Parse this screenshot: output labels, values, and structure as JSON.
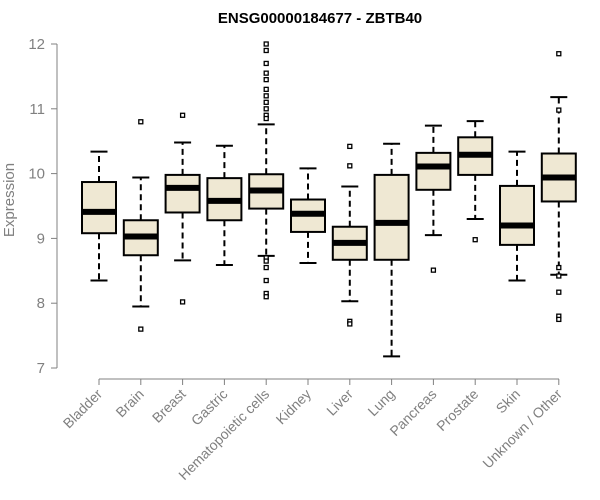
{
  "chart_data": {
    "type": "box",
    "title": "ENSG00000184677 - ZBTB40",
    "xlabel": "",
    "ylabel": "Expression",
    "ylim": [
      7,
      12
    ],
    "yticks": [
      7,
      8,
      9,
      10,
      11,
      12
    ],
    "colors": {
      "box_fill": "#efe8d3",
      "stroke": "#000000",
      "axis": "#808080",
      "tick_label": "#808080"
    },
    "categories": [
      "Bladder",
      "Brain",
      "Breast",
      "Gastric",
      "Hematopoietic cells",
      "Kidney",
      "Liver",
      "Lung",
      "Pancreas",
      "Prostate",
      "Skin",
      "Unknown / Other"
    ],
    "boxes": [
      {
        "category": "Bladder",
        "whisker_low": 8.35,
        "q1": 9.08,
        "median": 9.41,
        "q3": 9.87,
        "whisker_high": 10.34,
        "outliers": []
      },
      {
        "category": "Brain",
        "whisker_low": 7.95,
        "q1": 8.74,
        "median": 9.03,
        "q3": 9.28,
        "whisker_high": 9.94,
        "outliers": [
          10.8,
          7.6
        ]
      },
      {
        "category": "Breast",
        "whisker_low": 8.66,
        "q1": 9.4,
        "median": 9.78,
        "q3": 9.98,
        "whisker_high": 10.48,
        "outliers": [
          10.9,
          8.02
        ]
      },
      {
        "category": "Gastric",
        "whisker_low": 8.59,
        "q1": 9.28,
        "median": 9.58,
        "q3": 9.93,
        "whisker_high": 10.43,
        "outliers": []
      },
      {
        "category": "Hematopoietic cells",
        "whisker_low": 8.73,
        "q1": 9.46,
        "median": 9.74,
        "q3": 9.99,
        "whisker_high": 10.76,
        "outliers": [
          12.0,
          11.9,
          11.7,
          11.55,
          11.45,
          11.3,
          11.2,
          11.1,
          11.0,
          10.9,
          10.85,
          8.7,
          8.65,
          8.55,
          8.35,
          8.15,
          8.1
        ]
      },
      {
        "category": "Kidney",
        "whisker_low": 8.62,
        "q1": 9.1,
        "median": 9.38,
        "q3": 9.6,
        "whisker_high": 10.08,
        "outliers": []
      },
      {
        "category": "Liver",
        "whisker_low": 8.03,
        "q1": 8.67,
        "median": 8.93,
        "q3": 9.18,
        "whisker_high": 9.8,
        "outliers": [
          10.42,
          10.12,
          7.72,
          7.68
        ]
      },
      {
        "category": "Lung",
        "whisker_low": 7.18,
        "q1": 8.67,
        "median": 9.24,
        "q3": 9.98,
        "whisker_high": 10.46,
        "outliers": []
      },
      {
        "category": "Pancreas",
        "whisker_low": 9.05,
        "q1": 9.75,
        "median": 10.11,
        "q3": 10.32,
        "whisker_high": 10.74,
        "outliers": [
          8.51
        ]
      },
      {
        "category": "Prostate",
        "whisker_low": 9.3,
        "q1": 9.98,
        "median": 10.29,
        "q3": 10.56,
        "whisker_high": 10.81,
        "outliers": [
          8.98
        ]
      },
      {
        "category": "Skin",
        "whisker_low": 8.35,
        "q1": 8.9,
        "median": 9.2,
        "q3": 9.81,
        "whisker_high": 10.34,
        "outliers": []
      },
      {
        "category": "Unknown / Other",
        "whisker_low": 8.44,
        "q1": 9.57,
        "median": 9.94,
        "q3": 10.31,
        "whisker_high": 11.18,
        "outliers": [
          11.85,
          10.98,
          8.55,
          8.42,
          8.17,
          7.8,
          7.75
        ]
      }
    ]
  }
}
